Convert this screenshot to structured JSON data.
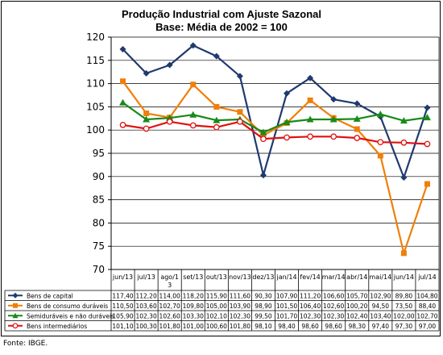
{
  "chart_data": {
    "type": "line",
    "title": "Produção Industrial com Ajuste Sazonal",
    "subtitle": "Base: Média de 2002 = 100",
    "categories": [
      "jun/13",
      "jul/13",
      "ago/13",
      "set/13",
      "out/13",
      "nov/13",
      "dez/13",
      "jan/14",
      "fev/14",
      "mar/14",
      "abr/14",
      "mai/14",
      "jun/14",
      "jul/14"
    ],
    "category_display": [
      "jun/13",
      "jul/13",
      "ago/1\n3",
      "set/13",
      "out/13",
      "nov/13",
      "dez/13",
      "jan/14",
      "fev/14",
      "mar/14",
      "abr/14",
      "mai/14",
      "jun/14",
      "jul/14"
    ],
    "ylim": [
      70,
      120
    ],
    "yticks": [
      70,
      75,
      80,
      85,
      90,
      95,
      100,
      105,
      110,
      115,
      120
    ],
    "grid": true,
    "legend": "data-table",
    "series": [
      {
        "name": "Bens de capital",
        "color": "#1F3A6E",
        "marker": "diamond",
        "values": [
          117.4,
          112.2,
          114.0,
          118.2,
          115.9,
          111.6,
          90.3,
          107.9,
          111.2,
          106.6,
          105.7,
          102.9,
          89.8,
          104.8
        ],
        "labels": [
          "117,40",
          "112,20",
          "114,00",
          "118,20",
          "115,90",
          "111,60",
          "90,30",
          "107,90",
          "111,20",
          "106,60",
          "105,70",
          "102,90",
          "89,80",
          "104,80"
        ]
      },
      {
        "name": "Bens de consumo duráveis",
        "color": "#F07F09",
        "marker": "square",
        "values": [
          110.5,
          103.6,
          102.7,
          109.8,
          105.0,
          103.9,
          98.9,
          101.5,
          106.4,
          102.6,
          100.2,
          94.5,
          73.5,
          88.4
        ],
        "labels": [
          "110,50",
          "103,60",
          "102,70",
          "109,80",
          "105,00",
          "103,90",
          "98,90",
          "101,50",
          "106,40",
          "102,60",
          "100,20",
          "94,50",
          "73,50",
          "88,40"
        ]
      },
      {
        "name": "Semiduráveis e não duráveis",
        "color": "#188A18",
        "marker": "triangle",
        "values": [
          105.9,
          102.3,
          102.6,
          103.3,
          102.1,
          102.3,
          99.5,
          101.7,
          102.3,
          102.3,
          102.4,
          103.4,
          102.0,
          102.7
        ],
        "labels": [
          "105,90",
          "102,30",
          "102,60",
          "103,30",
          "102,10",
          "102,30",
          "99,50",
          "101,70",
          "102,30",
          "102,30",
          "102,40",
          "103,40",
          "102,00",
          "102,70"
        ]
      },
      {
        "name": "Bens intermediários",
        "color": "#E01010",
        "marker": "circle",
        "values": [
          101.1,
          100.3,
          101.8,
          101.0,
          100.6,
          101.8,
          98.1,
          98.4,
          98.6,
          98.6,
          98.3,
          97.4,
          97.3,
          97.0
        ],
        "labels": [
          "101,10",
          "100,30",
          "101,80",
          "101,00",
          "100,60",
          "101,80",
          "98,10",
          "98,40",
          "98,60",
          "98,60",
          "98,30",
          "97,40",
          "97,30",
          "97,00"
        ]
      }
    ]
  },
  "source": "Fonte: IBGE."
}
